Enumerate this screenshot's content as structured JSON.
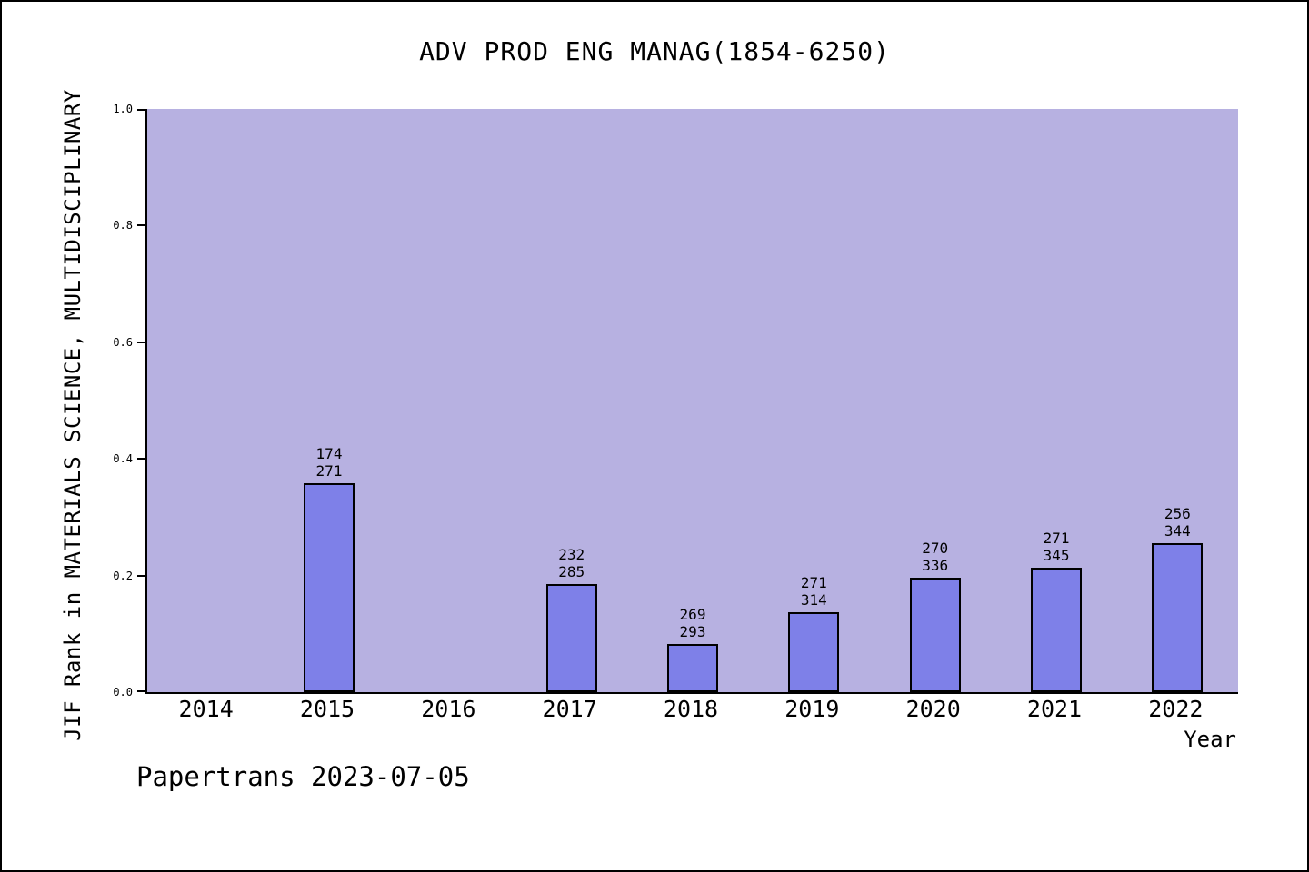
{
  "footer": "Papertrans 2023-07-05",
  "chart_data": {
    "type": "bar",
    "title": "ADV PROD ENG MANAG(1854-6250)",
    "xlabel": "Year",
    "ylabel": "JIF Rank in MATERIALS SCIENCE, MULTIDISCIPLINARY",
    "ylim": [
      0.0,
      1.0
    ],
    "yticks": [
      "0.0",
      "0.2",
      "0.4",
      "0.6",
      "0.8",
      "1.0"
    ],
    "grid": false,
    "legend": null,
    "categories": [
      "2014",
      "2015",
      "2016",
      "2017",
      "2018",
      "2019",
      "2020",
      "2021",
      "2022"
    ],
    "bars": [
      {
        "year": "2014",
        "rank": null,
        "total": null,
        "value": null
      },
      {
        "year": "2015",
        "rank": "174",
        "total": "271",
        "value": 0.358
      },
      {
        "year": "2016",
        "rank": null,
        "total": null,
        "value": null
      },
      {
        "year": "2017",
        "rank": "232",
        "total": "285",
        "value": 0.186
      },
      {
        "year": "2018",
        "rank": "269",
        "total": "293",
        "value": 0.082
      },
      {
        "year": "2019",
        "rank": "271",
        "total": "314",
        "value": 0.137
      },
      {
        "year": "2020",
        "rank": "270",
        "total": "336",
        "value": 0.196
      },
      {
        "year": "2021",
        "rank": "271",
        "total": "345",
        "value": 0.214
      },
      {
        "year": "2022",
        "rank": "256",
        "total": "344",
        "value": 0.256
      }
    ],
    "colors": {
      "plot_bg": "#b7b1e1",
      "bar_fill": "#7e80e8",
      "bar_edge": "#000000",
      "axis": "#000000",
      "text": "#000000"
    }
  }
}
